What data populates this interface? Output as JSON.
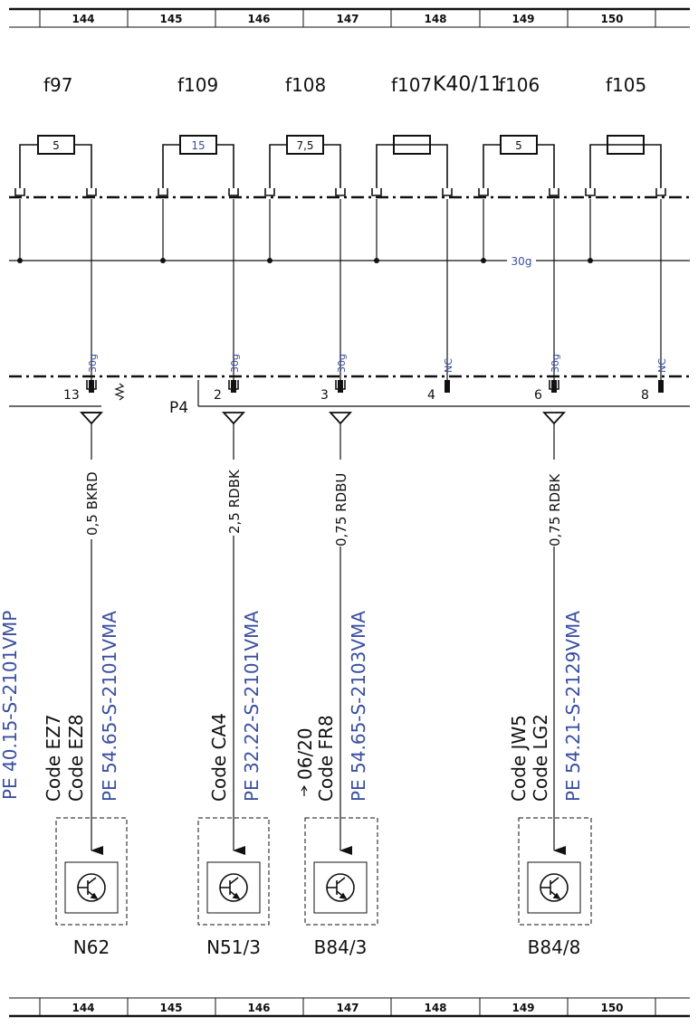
{
  "ruler_top": [
    "144",
    "145",
    "146",
    "147",
    "148",
    "149",
    "150"
  ],
  "ruler_bottom": [
    "144",
    "145",
    "146",
    "147",
    "148",
    "149",
    "150"
  ],
  "fuses": [
    {
      "id": "f97",
      "rating": "5"
    },
    {
      "id": "f109",
      "rating": "15"
    },
    {
      "id": "f108",
      "rating": "7,5"
    },
    {
      "id": "f107",
      "rating": ""
    },
    {
      "id": "f106",
      "rating": "5"
    },
    {
      "id": "f105",
      "rating": ""
    }
  ],
  "module_label": "K40/11",
  "bus_label": "30g",
  "connector_name": "P4",
  "pin_signals": [
    "30g",
    "30g",
    "30g",
    "NC",
    "30g",
    "NC"
  ],
  "pins": [
    "13",
    "2",
    "3",
    "4",
    "6",
    "8"
  ],
  "wires": [
    "0,5 BKRD",
    "2,5 RDBK",
    "0,75 RDBU",
    "0,75 RDBK"
  ],
  "codes": [
    {
      "lines": [
        "Code EZ7",
        "Code EZ8"
      ],
      "ref": "PE 54.65-S-2101VMA"
    },
    {
      "lines": [
        "Code CA4"
      ],
      "ref": "PE 32.22-S-2101VMA"
    },
    {
      "lines": [
        "Code FR8"
      ],
      "ref": "PE 54.65-S-2103VMA",
      "note": "06/20"
    },
    {
      "lines": [
        "Code JW5",
        "Code LG2"
      ],
      "ref": "PE 54.21-S-2129VMA"
    }
  ],
  "left_partial_ref": "PE 40.15-S-2101VMP",
  "components": [
    "N62",
    "N51/3",
    "B84/3",
    "B84/8"
  ],
  "colors": {
    "line": "#111111",
    "blue_text": "#3a4fa0"
  }
}
